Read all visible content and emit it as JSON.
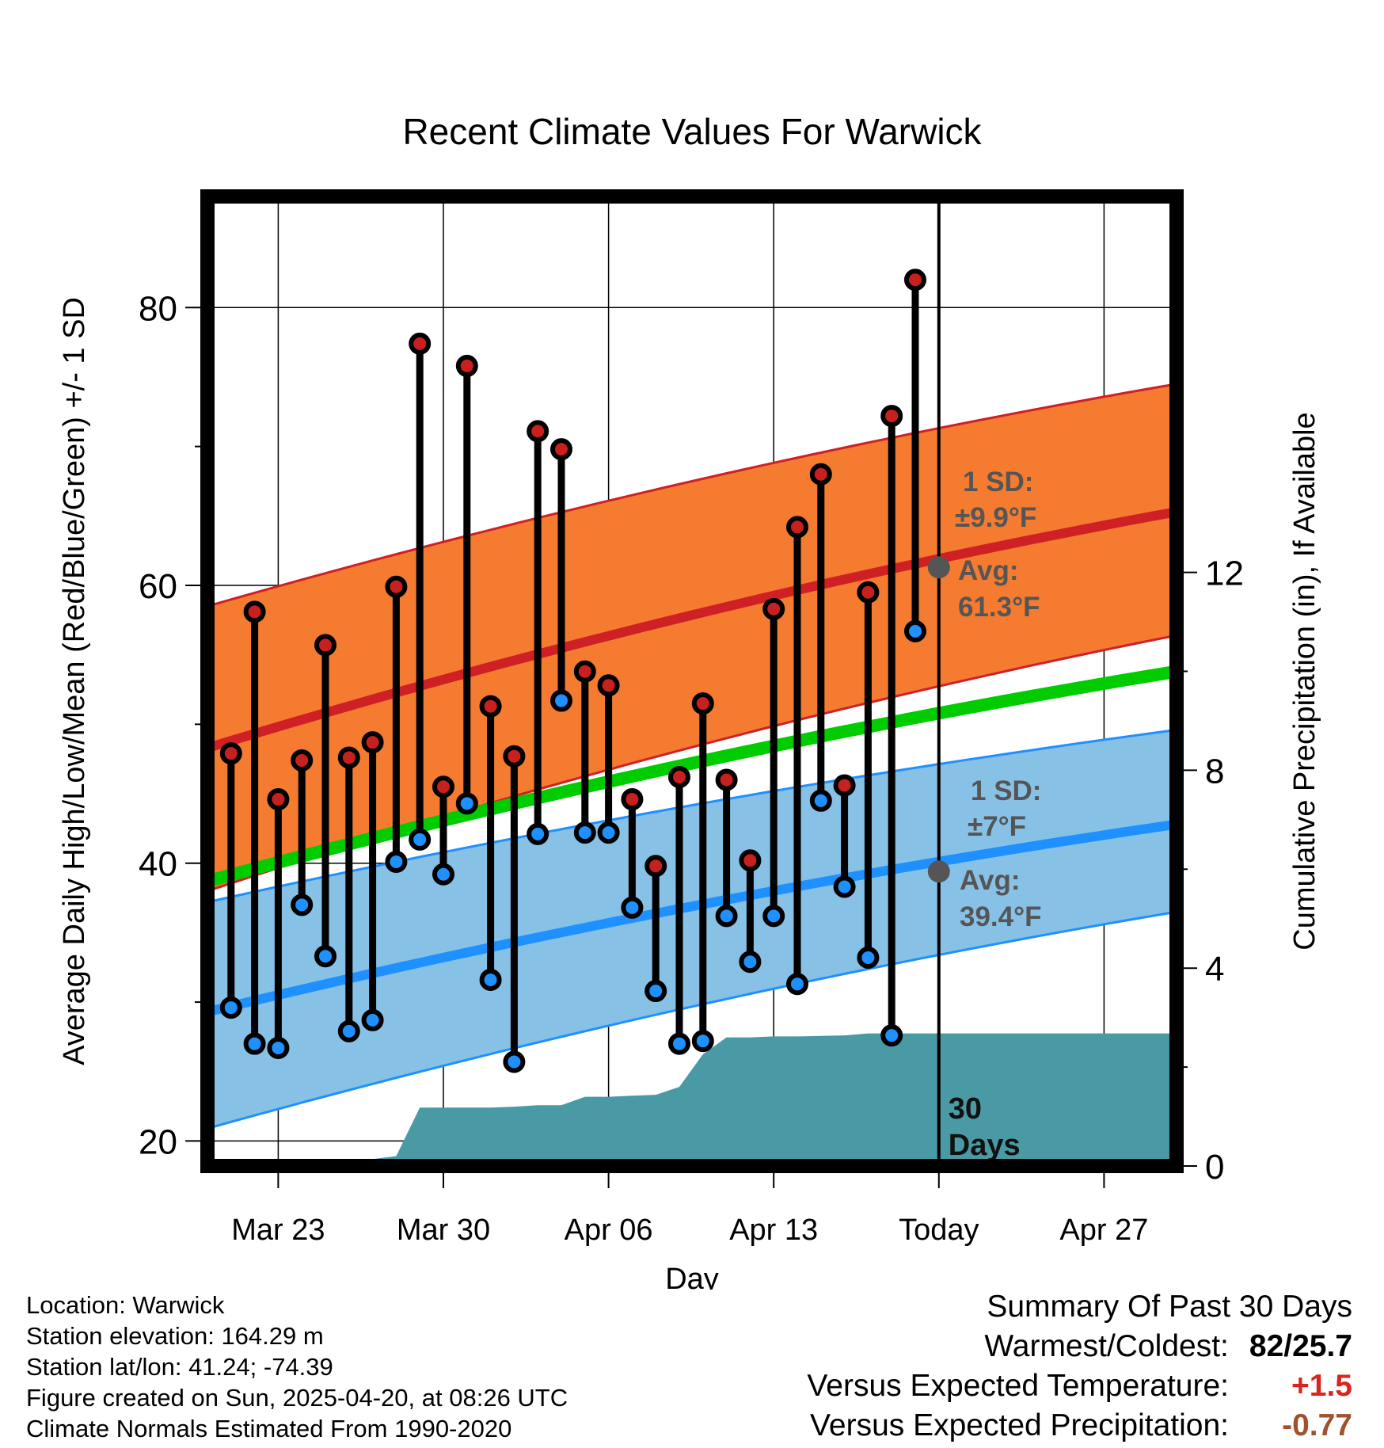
{
  "chart_data": {
    "type": "line",
    "title": "Recent Climate Values For Warwick",
    "xlabel": "Day",
    "ylabel_left": "Average Daily High/Low/Mean (Red/Blue/Green) +/- 1 SD",
    "ylabel_right": "Cumulative Precipitation (in), If Available",
    "x_ticks": [
      "Mar 23",
      "Mar 30",
      "Apr 06",
      "Apr 13",
      "Today",
      "Apr 27"
    ],
    "y_left_ticks": [
      "20",
      "40",
      "60",
      "80"
    ],
    "y_left_range": [
      18.2,
      88
    ],
    "y_right_ticks": [
      "0",
      "4",
      "8",
      "12"
    ],
    "y_right_range": [
      0,
      19.6
    ],
    "grid": true,
    "today_line_label": "30 Days",
    "days": [
      "Mar 21",
      "Mar 22",
      "Mar 23",
      "Mar 24",
      "Mar 25",
      "Mar 26",
      "Mar 27",
      "Mar 28",
      "Mar 29",
      "Mar 30",
      "Mar 31",
      "Apr 01",
      "Apr 02",
      "Apr 03",
      "Apr 04",
      "Apr 05",
      "Apr 06",
      "Apr 07",
      "Apr 08",
      "Apr 09",
      "Apr 10",
      "Apr 11",
      "Apr 12",
      "Apr 13",
      "Apr 14",
      "Apr 15",
      "Apr 16",
      "Apr 17",
      "Apr 18",
      "Apr 19"
    ],
    "series": [
      {
        "name": "Daily High",
        "color": "#c8201e",
        "values": [
          47.9,
          58.1,
          44.6,
          47.4,
          55.7,
          47.6,
          48.7,
          59.9,
          77.4,
          45.5,
          75.8,
          51.3,
          47.7,
          71.1,
          69.8,
          53.8,
          52.8,
          44.6,
          39.8,
          46.2,
          51.5,
          46.0,
          40.2,
          58.3,
          64.2,
          68.0,
          45.6,
          59.5,
          72.2,
          82.0
        ]
      },
      {
        "name": "Daily Low",
        "color": "#1e90ff",
        "values": [
          29.6,
          27.0,
          26.7,
          37.0,
          33.3,
          27.9,
          28.7,
          40.1,
          41.7,
          39.2,
          44.3,
          31.6,
          25.7,
          42.1,
          51.7,
          42.2,
          42.2,
          36.8,
          30.8,
          27.0,
          27.2,
          36.2,
          32.9,
          36.2,
          31.3,
          44.5,
          38.3,
          33.2,
          27.6,
          56.7
        ]
      }
    ],
    "normals": {
      "high_mean": [
        48.3,
        65.3
      ],
      "high_band": [
        [
          58.5,
          74.5
        ],
        [
          38.0,
          56.4
        ]
      ],
      "mean_line": [
        38.7,
        53.8
      ],
      "low_mean": [
        29.3,
        42.8
      ],
      "low_band": [
        [
          37.2,
          49.6
        ],
        [
          20.9,
          36.5
        ]
      ]
    },
    "precip_cumulative": [
      0.0,
      0.0,
      0.0,
      0.0,
      0.0,
      0.02,
      0.03,
      0.06,
      0.14,
      0.2,
      1.18,
      1.18,
      1.18,
      1.18,
      1.2,
      1.23,
      1.23,
      1.4,
      1.4,
      1.42,
      1.44,
      1.6,
      2.26,
      2.6,
      2.6,
      2.62,
      2.62,
      2.63,
      2.64,
      2.68,
      2.68,
      2.68,
      2.68,
      2.68,
      2.68,
      2.68,
      2.68,
      2.68,
      2.68,
      2.68,
      2.68
    ],
    "annotations": {
      "high_sd_label": "1 SD:",
      "high_sd_value": "±9.9°F",
      "high_avg_label": "Avg:",
      "high_avg_value": "61.3°F",
      "low_sd_label": "1 SD:",
      "low_sd_value": "±7°F",
      "low_avg_label": "Avg:",
      "low_avg_value": "39.4°F",
      "today_high_avg": 61.3,
      "today_low_avg": 39.4
    },
    "colors": {
      "high_band": "#f47b30",
      "high_line": "#cf2026",
      "mean_line": "#00cc00",
      "low_band": "#87c1e6",
      "low_line": "#1e90ff",
      "precip": "#4a9aa5",
      "annotation_text": "#555555"
    }
  },
  "info": {
    "location": "Location: Warwick",
    "elevation": "Station elevation: 164.29 m",
    "latlon": "Station lat/lon: 41.24; -74.39",
    "created": "Figure created on Sun, 2025-04-20, at 08:26 UTC",
    "normals": "Climate Normals Estimated From 1990-2020"
  },
  "summary": {
    "title": "Summary Of Past 30 Days",
    "warmest_label": "Warmest/Coldest:",
    "warmest_value": "82/25.7",
    "temp_label": "Versus Expected Temperature:",
    "temp_value": "+1.5",
    "temp_color": "#d8261f",
    "precip_label": "Versus Expected Precipitation:",
    "precip_value": "-0.77",
    "precip_color": "#a0522d"
  }
}
